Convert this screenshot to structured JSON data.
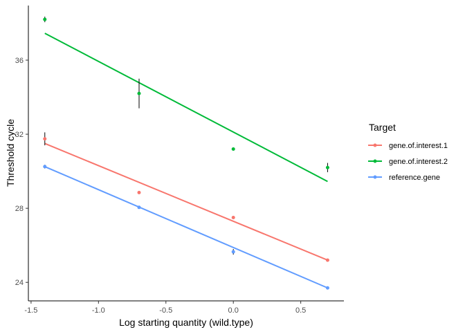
{
  "chart_data": {
    "type": "scatter",
    "xlabel": "Log starting quantity (wild.type)",
    "ylabel": "Threshold cycle",
    "xlim": [
      -1.52,
      0.82
    ],
    "ylim": [
      23.0,
      38.95
    ],
    "x_ticks": [
      -1.5,
      -1.0,
      -0.5,
      0.0,
      0.5
    ],
    "x_tick_labels": [
      "-1.5",
      "-1.0",
      "-0.5",
      "0.0",
      "0.5"
    ],
    "y_ticks": [
      24,
      28,
      32,
      36
    ],
    "y_tick_labels": [
      "24",
      "28",
      "32",
      "36"
    ],
    "grid": false,
    "legend": {
      "title": "Target",
      "position": "right"
    },
    "series": [
      {
        "name": "gene.of.interest.1",
        "color": "#F8766D",
        "points": [
          {
            "x": -1.398,
            "y": 31.75,
            "err": 0.35
          },
          {
            "x": -0.699,
            "y": 28.85,
            "err": 0.05
          },
          {
            "x": 0.0,
            "y": 27.5,
            "err": 0.06
          },
          {
            "x": 0.699,
            "y": 25.2,
            "err": 0.04
          }
        ],
        "fit": {
          "x": [
            -1.398,
            0.699
          ],
          "y": [
            31.5,
            25.2
          ]
        }
      },
      {
        "name": "gene.of.interest.2",
        "color": "#00BA38",
        "points": [
          {
            "x": -1.398,
            "y": 38.2,
            "err": 0.15
          },
          {
            "x": -0.699,
            "y": 34.2,
            "err": 0.8
          },
          {
            "x": 0.0,
            "y": 31.2,
            "err": 0.06
          },
          {
            "x": 0.699,
            "y": 30.2,
            "err": 0.25
          }
        ],
        "fit": {
          "x": [
            -1.398,
            0.699
          ],
          "y": [
            37.45,
            29.45
          ]
        }
      },
      {
        "name": "reference.gene",
        "color": "#619CFF",
        "points": [
          {
            "x": -1.398,
            "y": 30.25,
            "err": 0.1
          },
          {
            "x": -0.699,
            "y": 28.05,
            "err": 0.04
          },
          {
            "x": 0.0,
            "y": 25.65,
            "err": 0.15
          },
          {
            "x": 0.699,
            "y": 23.7,
            "err": 0.05
          }
        ],
        "fit": {
          "x": [
            -1.398,
            0.699
          ],
          "y": [
            30.25,
            23.7
          ]
        }
      }
    ]
  }
}
